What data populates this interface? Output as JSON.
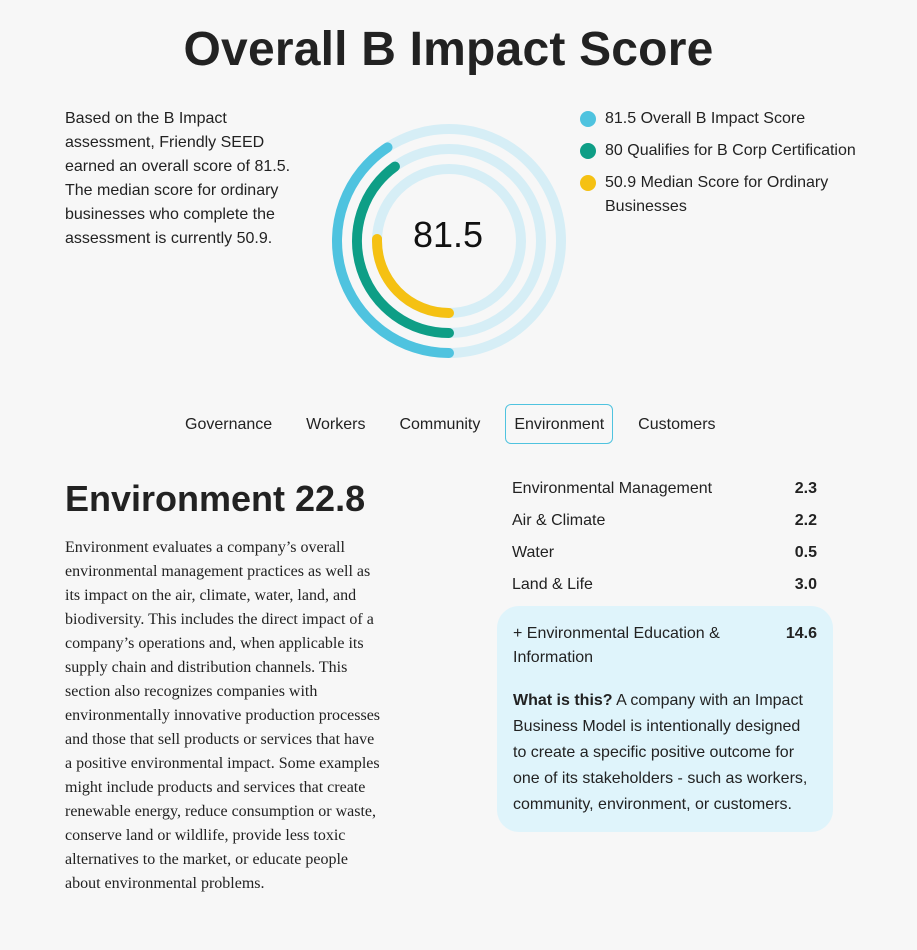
{
  "title": "Overall B Impact Score",
  "intro": "Based on the B Impact assessment, Friendly SEED earned an overall score of 81.5. The median score for ordinary businesses who complete the assessment is currently 50.9.",
  "gauge": {
    "score_text": "81.5",
    "rings": [
      {
        "value": 81.5,
        "color": "#4fc3df",
        "track": "#d6eef6"
      },
      {
        "value": 80,
        "color": "#0e9e86",
        "track": "#d6eef6"
      },
      {
        "value": 50.9,
        "color": "#f5c113",
        "track": "#d6eef6"
      }
    ]
  },
  "legend": [
    {
      "label": "81.5 Overall B Impact Score",
      "color": "#4fc3df"
    },
    {
      "label": "80 Qualifies for B Corp Certification",
      "color": "#0e9e86"
    },
    {
      "label": "50.9 Median Score for Ordinary Businesses",
      "color": "#f5c113"
    }
  ],
  "tabs": [
    {
      "label": "Governance",
      "active": false
    },
    {
      "label": "Workers",
      "active": false
    },
    {
      "label": "Community",
      "active": false
    },
    {
      "label": "Environment",
      "active": true
    },
    {
      "label": "Customers",
      "active": false
    }
  ],
  "section": {
    "title": "Environment 22.8",
    "description": "Environment evaluates a company’s overall environmental management practices as well as its impact on the air, climate, water, land, and biodiversity. This includes the direct impact of a company’s operations and, when applicable its supply chain and distribution channels. This section also recognizes companies with environmentally innovative production processes and those that sell products or services that have a positive environmental impact. Some examples might include products and services that create renewable energy, reduce consumption or waste, conserve land or wildlife, provide less toxic alternatives to the market, or educate people about environmental problems."
  },
  "scores": [
    {
      "label": "Environmental Management",
      "value": "2.3"
    },
    {
      "label": "Air & Climate",
      "value": "2.2"
    },
    {
      "label": "Water",
      "value": "0.5"
    },
    {
      "label": "Land & Life",
      "value": "3.0"
    }
  ],
  "impact_model": {
    "label": "+ Environmental Education & Information",
    "value": "14.6",
    "question": "What is this?",
    "explanation": " A company with an Impact Business Model is intentionally designed to create a specific positive outcome for one of its stakeholders - such as workers, community, environment, or customers."
  }
}
